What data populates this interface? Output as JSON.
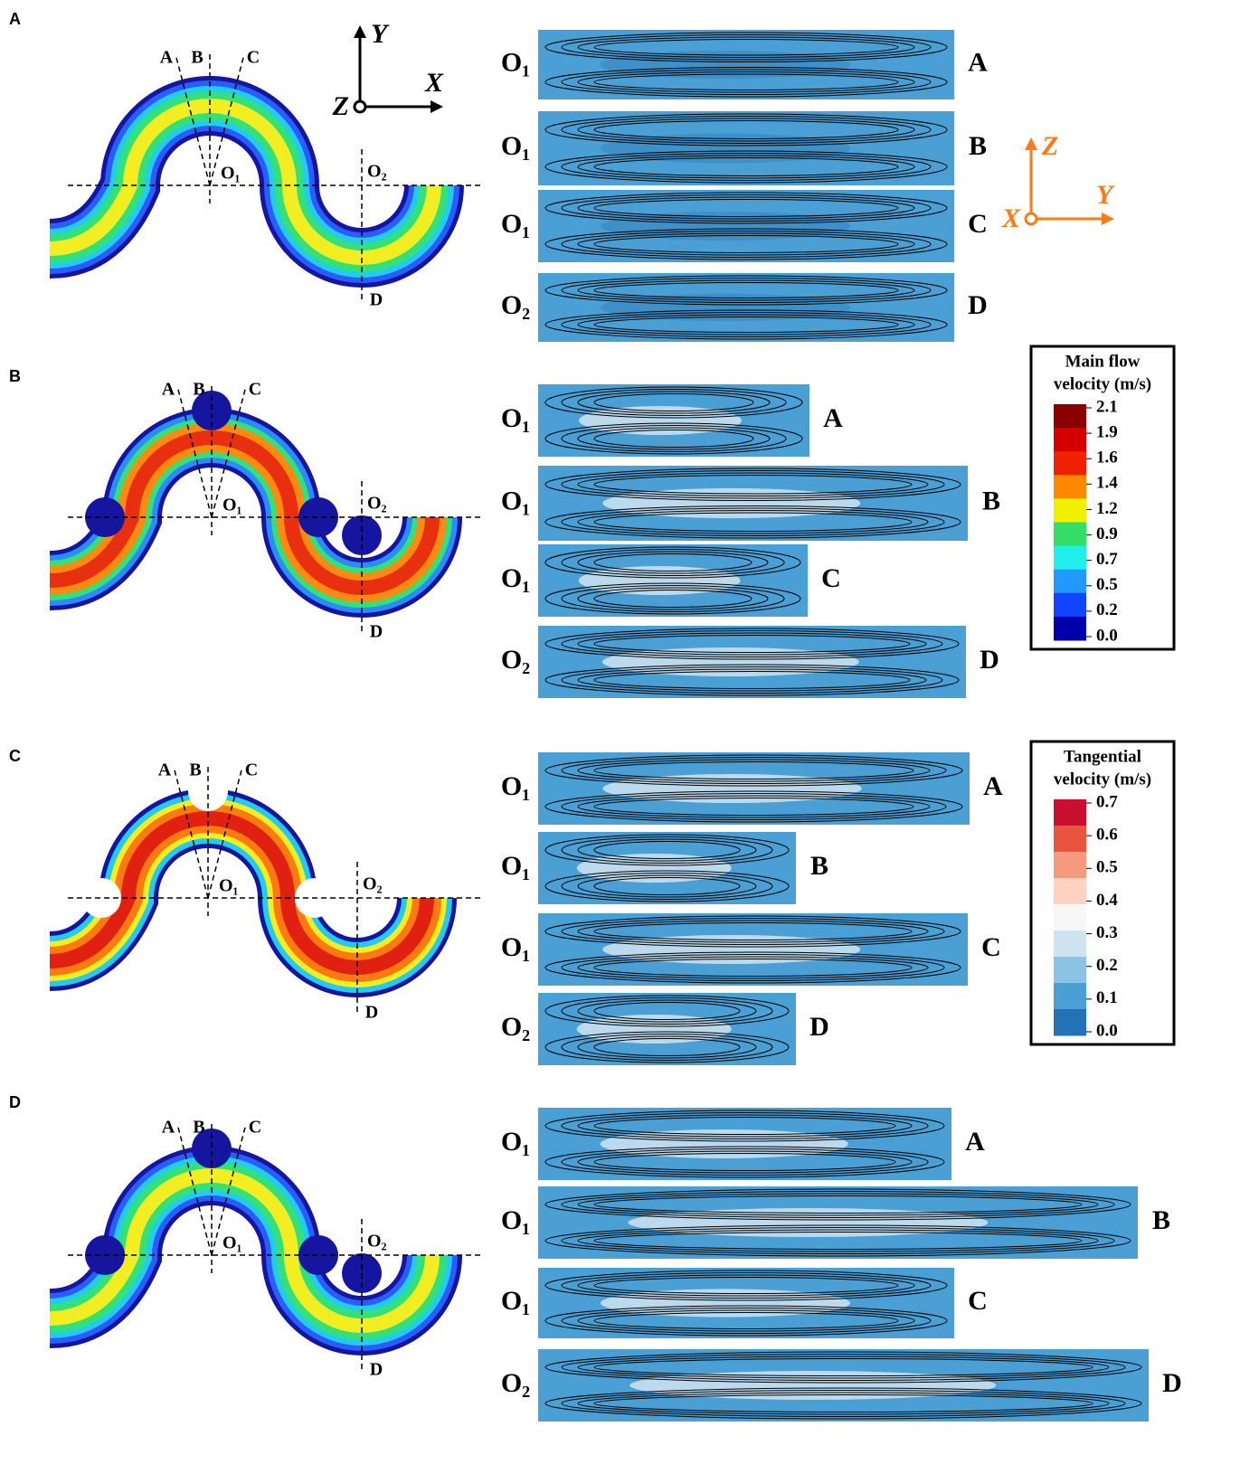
{
  "panels": [
    {
      "label": "A",
      "cuts": [
        "A",
        "B",
        "C",
        "D"
      ],
      "centers": [
        "O₁",
        "O₂"
      ],
      "slices": [
        {
          "center": "O₁",
          "cut": "A"
        },
        {
          "center": "O₁",
          "cut": "B"
        },
        {
          "center": "O₁",
          "cut": "C"
        },
        {
          "center": "O₂",
          "cut": "D"
        }
      ]
    },
    {
      "label": "B",
      "cuts": [
        "A",
        "B",
        "C",
        "D"
      ],
      "centers": [
        "O₁",
        "O₂"
      ],
      "slices": [
        {
          "center": "O₁",
          "cut": "A"
        },
        {
          "center": "O₁",
          "cut": "B"
        },
        {
          "center": "O₁",
          "cut": "C"
        },
        {
          "center": "O₂",
          "cut": "D"
        }
      ]
    },
    {
      "label": "C",
      "cuts": [
        "A",
        "B",
        "C",
        "D"
      ],
      "centers": [
        "O₁",
        "O₂"
      ],
      "slices": [
        {
          "center": "O₁",
          "cut": "A"
        },
        {
          "center": "O₁",
          "cut": "B"
        },
        {
          "center": "O₁",
          "cut": "C"
        },
        {
          "center": "O₂",
          "cut": "D"
        }
      ]
    },
    {
      "label": "D",
      "cuts": [
        "A",
        "B",
        "C",
        "D"
      ],
      "centers": [
        "O₁",
        "O₂"
      ],
      "slices": [
        {
          "center": "O₁",
          "cut": "A"
        },
        {
          "center": "O₁",
          "cut": "B"
        },
        {
          "center": "O₁",
          "cut": "C"
        },
        {
          "center": "O₂",
          "cut": "D"
        }
      ]
    }
  ],
  "axes": [
    {
      "horizontal": "X",
      "vertical": "Y",
      "normal": "Z"
    },
    {
      "horizontal": "Y",
      "vertical": "Z",
      "normal": "X"
    }
  ],
  "legends": [
    {
      "title": "Main flow",
      "subtitle": "velocity (m/s)",
      "ticks": [
        2.1,
        1.9,
        1.6,
        1.4,
        1.2,
        0.9,
        0.7,
        0.5,
        0.2,
        {
          "value": 0,
          "label": "0.0"
        }
      ]
    },
    {
      "title": "Tangential",
      "subtitle": "velocity (m/s)",
      "ticks": [
        0.7,
        0.6,
        0.5,
        0.4,
        0.3,
        0.2,
        0.1,
        {
          "value": 0,
          "label": "0.0"
        }
      ]
    }
  ]
}
